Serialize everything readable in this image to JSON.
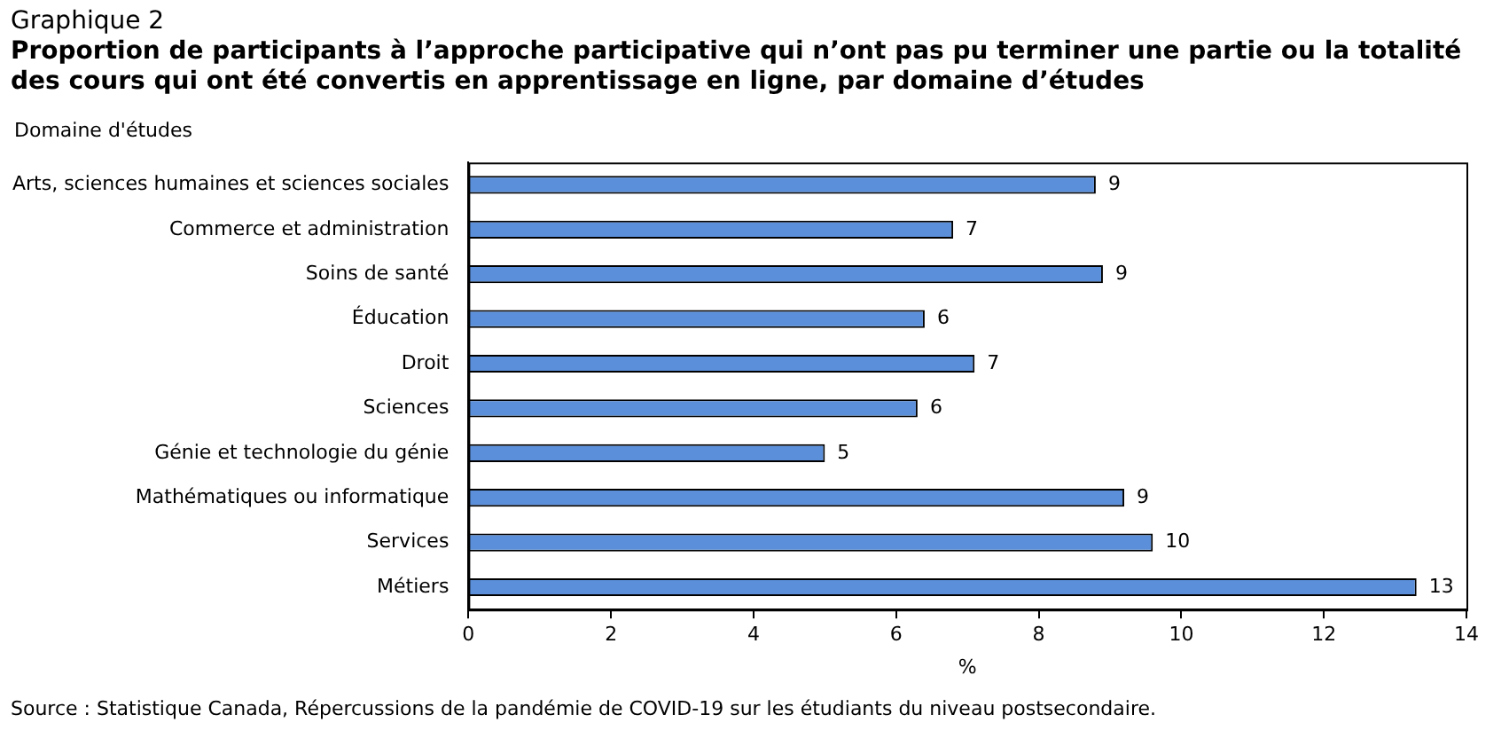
{
  "chart_data": {
    "type": "bar",
    "orientation": "horizontal",
    "title": "Graphique 2",
    "subtitle": "Proportion de participants à l’approche participative qui n’ont pas pu terminer une partie ou la totalité des cours qui ont été convertis en apprentissage en ligne, par domaine d’études",
    "ylabel": "Domaine d'études",
    "xlabel": "%",
    "categories": [
      "Arts, sciences humaines et sciences sociales",
      "Commerce et administration",
      "Soins de santé",
      "Éducation",
      "Droit",
      "Sciences",
      "Génie et technologie du génie",
      "Mathématiques ou informatique",
      "Services",
      "Métiers"
    ],
    "values": [
      8.8,
      6.8,
      8.9,
      6.4,
      7.1,
      6.3,
      5.0,
      9.2,
      9.6,
      13.3
    ],
    "value_labels": [
      "9",
      "7",
      "9",
      "6",
      "7",
      "6",
      "5",
      "9",
      "10",
      "13"
    ],
    "color": "#5b8fd9",
    "xlim": [
      0,
      14
    ],
    "xticks": [
      0,
      2,
      4,
      6,
      8,
      10,
      12,
      14
    ],
    "grid": false,
    "legend": false,
    "annotations": [
      "Source : Statistique Canada, Répercussions de la pandémie de COVID-19 sur les étudiants du niveau postsecondaire."
    ]
  }
}
